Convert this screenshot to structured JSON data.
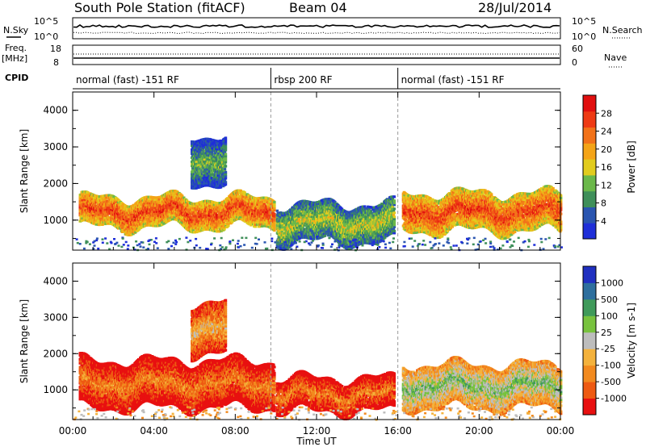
{
  "header": {
    "station": "South Pole Station (fitACF)",
    "beam": "Beam 04",
    "date": "28/Jul/2014"
  },
  "side_labels": {
    "nsky": "N.Sky",
    "freq": "Freq.",
    "freq_unit": "[MHz]",
    "cpid": "CPID",
    "nsearch": "N.Search",
    "nave": "Nave"
  },
  "small_axes": {
    "noise_left_ticks": [
      "10^5",
      "10^0"
    ],
    "noise_right_ticks": [
      "10^5",
      "10^0"
    ],
    "freq_left_ticks": [
      "18",
      "8"
    ],
    "nave_right_ticks": [
      "60",
      "0"
    ]
  },
  "cpid_segments": [
    {
      "label": "normal (fast) -151 RF",
      "start": 0,
      "end": 9.75
    },
    {
      "label": "rbsp 200 RF",
      "start": 9.75,
      "end": 16.0
    },
    {
      "label": "normal (fast) -151 RF",
      "start": 16.0,
      "end": 24.0
    }
  ],
  "x_axis": {
    "label": "Time UT",
    "ticks": [
      "00:00",
      "04:00",
      "08:00",
      "12:00",
      "16:00",
      "20:00",
      "00:00"
    ]
  },
  "colors": {
    "power": [
      "#1f2fd8",
      "#2a55b0",
      "#3f8f5a",
      "#6bb84a",
      "#e2cc1e",
      "#f4a417",
      "#f27219",
      "#ee3a14",
      "#e10f0f"
    ],
    "velocity": [
      "#e81010",
      "#ee5a12",
      "#f28a1f",
      "#f4b23c",
      "#bdbdbd",
      "#78c23e",
      "#3f9a5a",
      "#2e6f9e",
      "#2030c0"
    ]
  },
  "chart_data": [
    {
      "type": "heatmap",
      "panel": "power",
      "ylabel": "Slant Range [km]",
      "xlabel": "",
      "ylim": [
        180,
        4500
      ],
      "xlim": [
        0,
        24
      ],
      "y_ticks": [
        1000,
        2000,
        3000,
        4000
      ],
      "colorbar": {
        "label": "Power [dB]",
        "ticks": [
          "4",
          "8",
          "12",
          "16",
          "20",
          "24",
          "28"
        ]
      },
      "echo_bands": [
        {
          "start": 0.3,
          "end": 9.9,
          "range": [
            800,
            1600
          ],
          "level": 7
        },
        {
          "start": 5.8,
          "end": 7.5,
          "range": [
            2000,
            3300
          ],
          "level": 3
        },
        {
          "start": 10.0,
          "end": 15.8,
          "range": [
            400,
            1400
          ],
          "level": 4
        },
        {
          "start": 16.2,
          "end": 24.0,
          "range": [
            700,
            1700
          ],
          "level": 7
        }
      ]
    },
    {
      "type": "heatmap",
      "panel": "velocity",
      "ylabel": "Slant Range [km]",
      "xlabel": "Time UT",
      "ylim": [
        180,
        4500
      ],
      "xlim": [
        0,
        24
      ],
      "y_ticks": [
        1000,
        2000,
        3000,
        4000
      ],
      "colorbar": {
        "label": "Velocity [m s-1]",
        "ticks": [
          "-1000",
          "-500",
          "-100",
          "-25",
          "25",
          "100",
          "500",
          "1000"
        ]
      },
      "echo_bands": [
        {
          "start": 0.3,
          "end": 9.9,
          "range": [
            500,
            1800
          ],
          "level": 2
        },
        {
          "start": 5.8,
          "end": 7.5,
          "range": [
            2000,
            3400
          ],
          "level": 3
        },
        {
          "start": 10.0,
          "end": 15.8,
          "range": [
            400,
            1300
          ],
          "level": 2
        },
        {
          "start": 16.2,
          "end": 24.0,
          "range": [
            500,
            1700
          ],
          "level": 5
        }
      ]
    }
  ]
}
